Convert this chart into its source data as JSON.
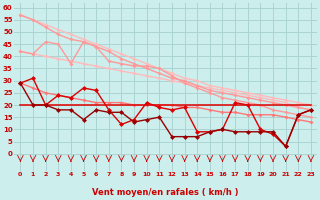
{
  "x": [
    0,
    1,
    2,
    3,
    4,
    5,
    6,
    7,
    8,
    9,
    10,
    11,
    12,
    13,
    14,
    15,
    16,
    17,
    18,
    19,
    20,
    21,
    22,
    23
  ],
  "line1": [
    57,
    55,
    53,
    51,
    49,
    47,
    45,
    43,
    41,
    39,
    37,
    35,
    33,
    31,
    30,
    28,
    27,
    26,
    25,
    24,
    23,
    22,
    21,
    20
  ],
  "line2": [
    42,
    41,
    40,
    39,
    38,
    37,
    36,
    35,
    34,
    33,
    32,
    31,
    30,
    29,
    28,
    27,
    26,
    25,
    24,
    23,
    22,
    21,
    19,
    18
  ],
  "line3": [
    57,
    55,
    52,
    49,
    47,
    46,
    44,
    42,
    39,
    37,
    35,
    33,
    31,
    30,
    28,
    26,
    25,
    24,
    23,
    22,
    21,
    20,
    19,
    18
  ],
  "line4": [
    42,
    41,
    46,
    45,
    37,
    46,
    44,
    38,
    37,
    36,
    36,
    35,
    32,
    29,
    27,
    25,
    23,
    22,
    21,
    20,
    18,
    17,
    16,
    15
  ],
  "line5": [
    29,
    27,
    25,
    24,
    23,
    22,
    21,
    21,
    21,
    20,
    20,
    20,
    20,
    19,
    19,
    18,
    17,
    17,
    16,
    16,
    16,
    15,
    14,
    13
  ],
  "line6_flat": [
    20,
    20,
    20,
    20,
    20,
    20,
    20,
    20,
    20,
    20,
    20,
    20,
    20,
    20,
    20,
    20,
    20,
    20,
    20,
    20,
    20,
    20,
    20,
    20
  ],
  "series_dark1": [
    29,
    31,
    20,
    24,
    23,
    27,
    26,
    18,
    12,
    14,
    21,
    19,
    18,
    19,
    9,
    9,
    10,
    21,
    20,
    10,
    8,
    3,
    16,
    18
  ],
  "series_dark2": [
    29,
    20,
    20,
    18,
    18,
    14,
    18,
    17,
    17,
    13,
    14,
    15,
    7,
    7,
    7,
    9,
    10,
    9,
    9,
    9,
    9,
    3,
    16,
    18
  ],
  "bg_color": "#cceeed",
  "grid_color": "#aad4d3",
  "line1_color": "#ffbbbb",
  "line2_color": "#ffbbbb",
  "line3_color": "#ff9999",
  "line4_color": "#ff9999",
  "line5_color": "#ff7777",
  "line6_color": "#dd1111",
  "dark1_color": "#dd0000",
  "dark2_color": "#990000",
  "xlabel": "Vent moyen/en rafales ( km/h )",
  "ylabel_ticks": [
    0,
    5,
    10,
    15,
    20,
    25,
    30,
    35,
    40,
    45,
    50,
    55,
    60
  ],
  "ylim": [
    -7,
    62
  ],
  "xlim": [
    -0.5,
    23.5
  ]
}
